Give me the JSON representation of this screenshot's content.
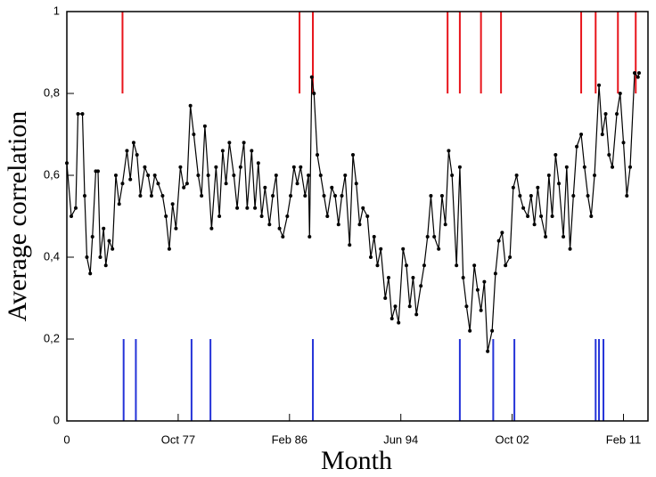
{
  "chart_data": {
    "type": "line",
    "xlabel": "Month",
    "ylabel": "Average correlation",
    "x": [
      0,
      4,
      8,
      10,
      14,
      16,
      18,
      21,
      23,
      26,
      28,
      30,
      33,
      35,
      38,
      41,
      44,
      47,
      50,
      54,
      57,
      60,
      63,
      66,
      70,
      73,
      76,
      79,
      82,
      86,
      89,
      92,
      95,
      98,
      102,
      105,
      108,
      111,
      114,
      118,
      121,
      124,
      127,
      130,
      134,
      137,
      140,
      143,
      146,
      150,
      153,
      156,
      159,
      162,
      166,
      169,
      172,
      175,
      178,
      182,
      185,
      188,
      191,
      194,
      198,
      201,
      204,
      207,
      210,
      214,
      217,
      218,
      220,
      222,
      225,
      228,
      231,
      234,
      238,
      241,
      244,
      247,
      250,
      254,
      257,
      260,
      263,
      266,
      270,
      273,
      276,
      279,
      282,
      286,
      289,
      292,
      295,
      298,
      302,
      305,
      308,
      311,
      314,
      318,
      321,
      324,
      327,
      330,
      334,
      337,
      340,
      343,
      346,
      350,
      353,
      356,
      359,
      362,
      366,
      369,
      372,
      375,
      378,
      382,
      385,
      388,
      391,
      394,
      398,
      401,
      404,
      407,
      410,
      414,
      417,
      420,
      423,
      426,
      430,
      433,
      436,
      439,
      442,
      446,
      449,
      452,
      455,
      458,
      462,
      465,
      468,
      471,
      474,
      478,
      481,
      484,
      487,
      490,
      494,
      497,
      500,
      503,
      506,
      510,
      513,
      514
    ],
    "values": [
      0.63,
      0.5,
      0.52,
      0.75,
      0.75,
      0.55,
      0.4,
      0.36,
      0.45,
      0.61,
      0.61,
      0.4,
      0.47,
      0.38,
      0.44,
      0.42,
      0.6,
      0.53,
      0.58,
      0.66,
      0.59,
      0.68,
      0.65,
      0.55,
      0.62,
      0.6,
      0.55,
      0.6,
      0.58,
      0.55,
      0.5,
      0.42,
      0.53,
      0.47,
      0.62,
      0.57,
      0.58,
      0.77,
      0.7,
      0.6,
      0.55,
      0.72,
      0.6,
      0.47,
      0.62,
      0.5,
      0.66,
      0.58,
      0.68,
      0.6,
      0.52,
      0.62,
      0.68,
      0.52,
      0.66,
      0.52,
      0.63,
      0.5,
      0.57,
      0.48,
      0.55,
      0.6,
      0.47,
      0.45,
      0.5,
      0.55,
      0.62,
      0.58,
      0.62,
      0.55,
      0.6,
      0.45,
      0.84,
      0.8,
      0.65,
      0.6,
      0.55,
      0.5,
      0.57,
      0.55,
      0.48,
      0.55,
      0.6,
      0.43,
      0.65,
      0.58,
      0.48,
      0.52,
      0.5,
      0.4,
      0.45,
      0.38,
      0.42,
      0.3,
      0.35,
      0.25,
      0.28,
      0.24,
      0.42,
      0.38,
      0.28,
      0.35,
      0.26,
      0.33,
      0.38,
      0.45,
      0.55,
      0.45,
      0.42,
      0.55,
      0.48,
      0.66,
      0.6,
      0.38,
      0.62,
      0.35,
      0.28,
      0.22,
      0.38,
      0.32,
      0.27,
      0.34,
      0.17,
      0.22,
      0.36,
      0.44,
      0.46,
      0.38,
      0.4,
      0.57,
      0.6,
      0.55,
      0.52,
      0.5,
      0.55,
      0.48,
      0.57,
      0.5,
      0.45,
      0.6,
      0.5,
      0.65,
      0.58,
      0.45,
      0.62,
      0.42,
      0.55,
      0.67,
      0.7,
      0.62,
      0.55,
      0.5,
      0.6,
      0.82,
      0.7,
      0.75,
      0.65,
      0.62,
      0.75,
      0.8,
      0.68,
      0.55,
      0.62,
      0.85,
      0.84,
      0.85
    ],
    "color": "#000000",
    "markers": [
      {
        "color": "#e8141b",
        "x": [
          50,
          209,
          221,
          342,
          353,
          372,
          390,
          462,
          475,
          495,
          511
        ],
        "span": [
          0.8,
          1
        ]
      },
      {
        "color": "#2433d8",
        "x": [
          51,
          62,
          112,
          129,
          221,
          353,
          383,
          402,
          475,
          478,
          482
        ],
        "span": [
          0,
          0.2
        ]
      }
    ],
    "xlim": [
      0,
      522
    ],
    "xticks": [
      0,
      {
        "value": 100,
        "label": "Oct 77"
      },
      {
        "value": 200,
        "label": "Feb 86"
      },
      {
        "value": 300,
        "label": "Jun 94"
      },
      {
        "value": 400,
        "label": "Oct 02"
      },
      {
        "value": 500,
        "label": "Feb 11"
      }
    ],
    "ylim": [
      0,
      1
    ],
    "yticks": [
      0,
      {
        "value": 0.2,
        "label": "0,2"
      },
      {
        "value": 0.4,
        "label": "0,4"
      },
      {
        "value": 0.6,
        "label": "0,6"
      },
      {
        "value": 0.8,
        "label": "0,8"
      },
      1
    ]
  }
}
